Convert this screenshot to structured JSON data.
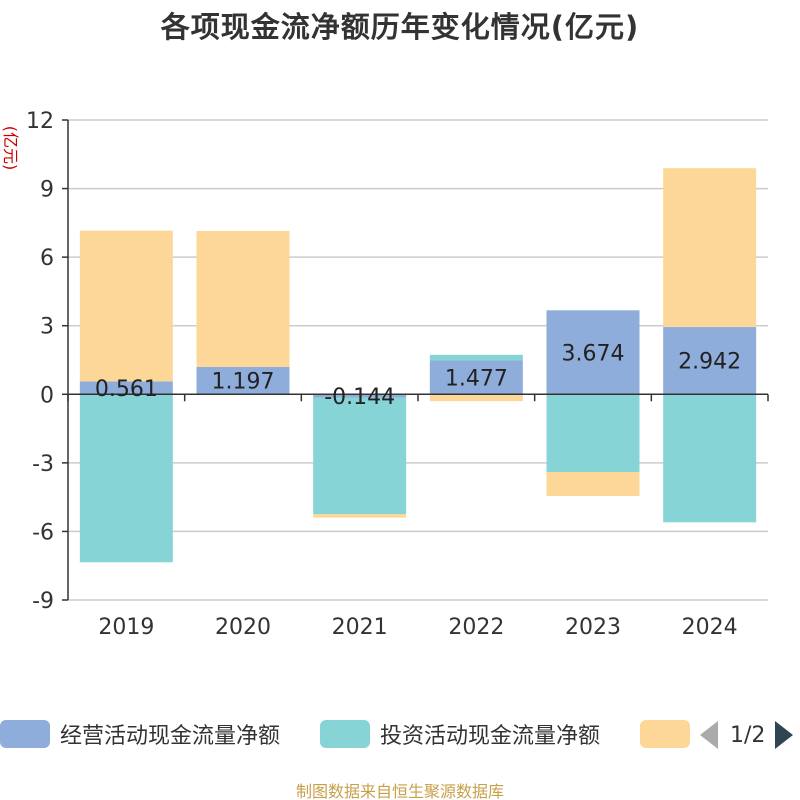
{
  "title": "各项现金流净额历年变化情况(亿元)",
  "unit_label": "(亿元)",
  "source": "制图数据来自恒生聚源数据库",
  "legend": {
    "items": [
      {
        "label": "经营活动现金流量净额",
        "color": "#8eadda"
      },
      {
        "label": "投资活动现金流量净额",
        "color": "#87d4d6"
      },
      {
        "label": "",
        "color": "#fdd797"
      }
    ],
    "page": "1/2"
  },
  "chart_data": {
    "type": "bar",
    "stacked": true,
    "categories": [
      "2019",
      "2020",
      "2021",
      "2022",
      "2023",
      "2024"
    ],
    "ylim": [
      -9,
      12
    ],
    "yticks": [
      12,
      9,
      6,
      3,
      0,
      -3,
      -6,
      -9
    ],
    "grid": true,
    "legend_position": "bottom",
    "series": [
      {
        "name": "经营活动现金流量净额",
        "color": "#8eadda",
        "values": [
          0.561,
          1.197,
          -0.144,
          1.477,
          3.674,
          2.942
        ],
        "labels": [
          "0.561",
          "1.197",
          "-0.144",
          "1.477",
          "3.674",
          "2.942"
        ]
      },
      {
        "name": "投资活动现金流量净额",
        "color": "#87d4d6",
        "values": [
          -7.35,
          0,
          -5.1,
          0.25,
          -3.4,
          -5.6
        ]
      },
      {
        "color": "#fdd797",
        "values": [
          6.6,
          5.95,
          -0.15,
          -0.3,
          -1.05,
          6.95
        ]
      }
    ]
  }
}
